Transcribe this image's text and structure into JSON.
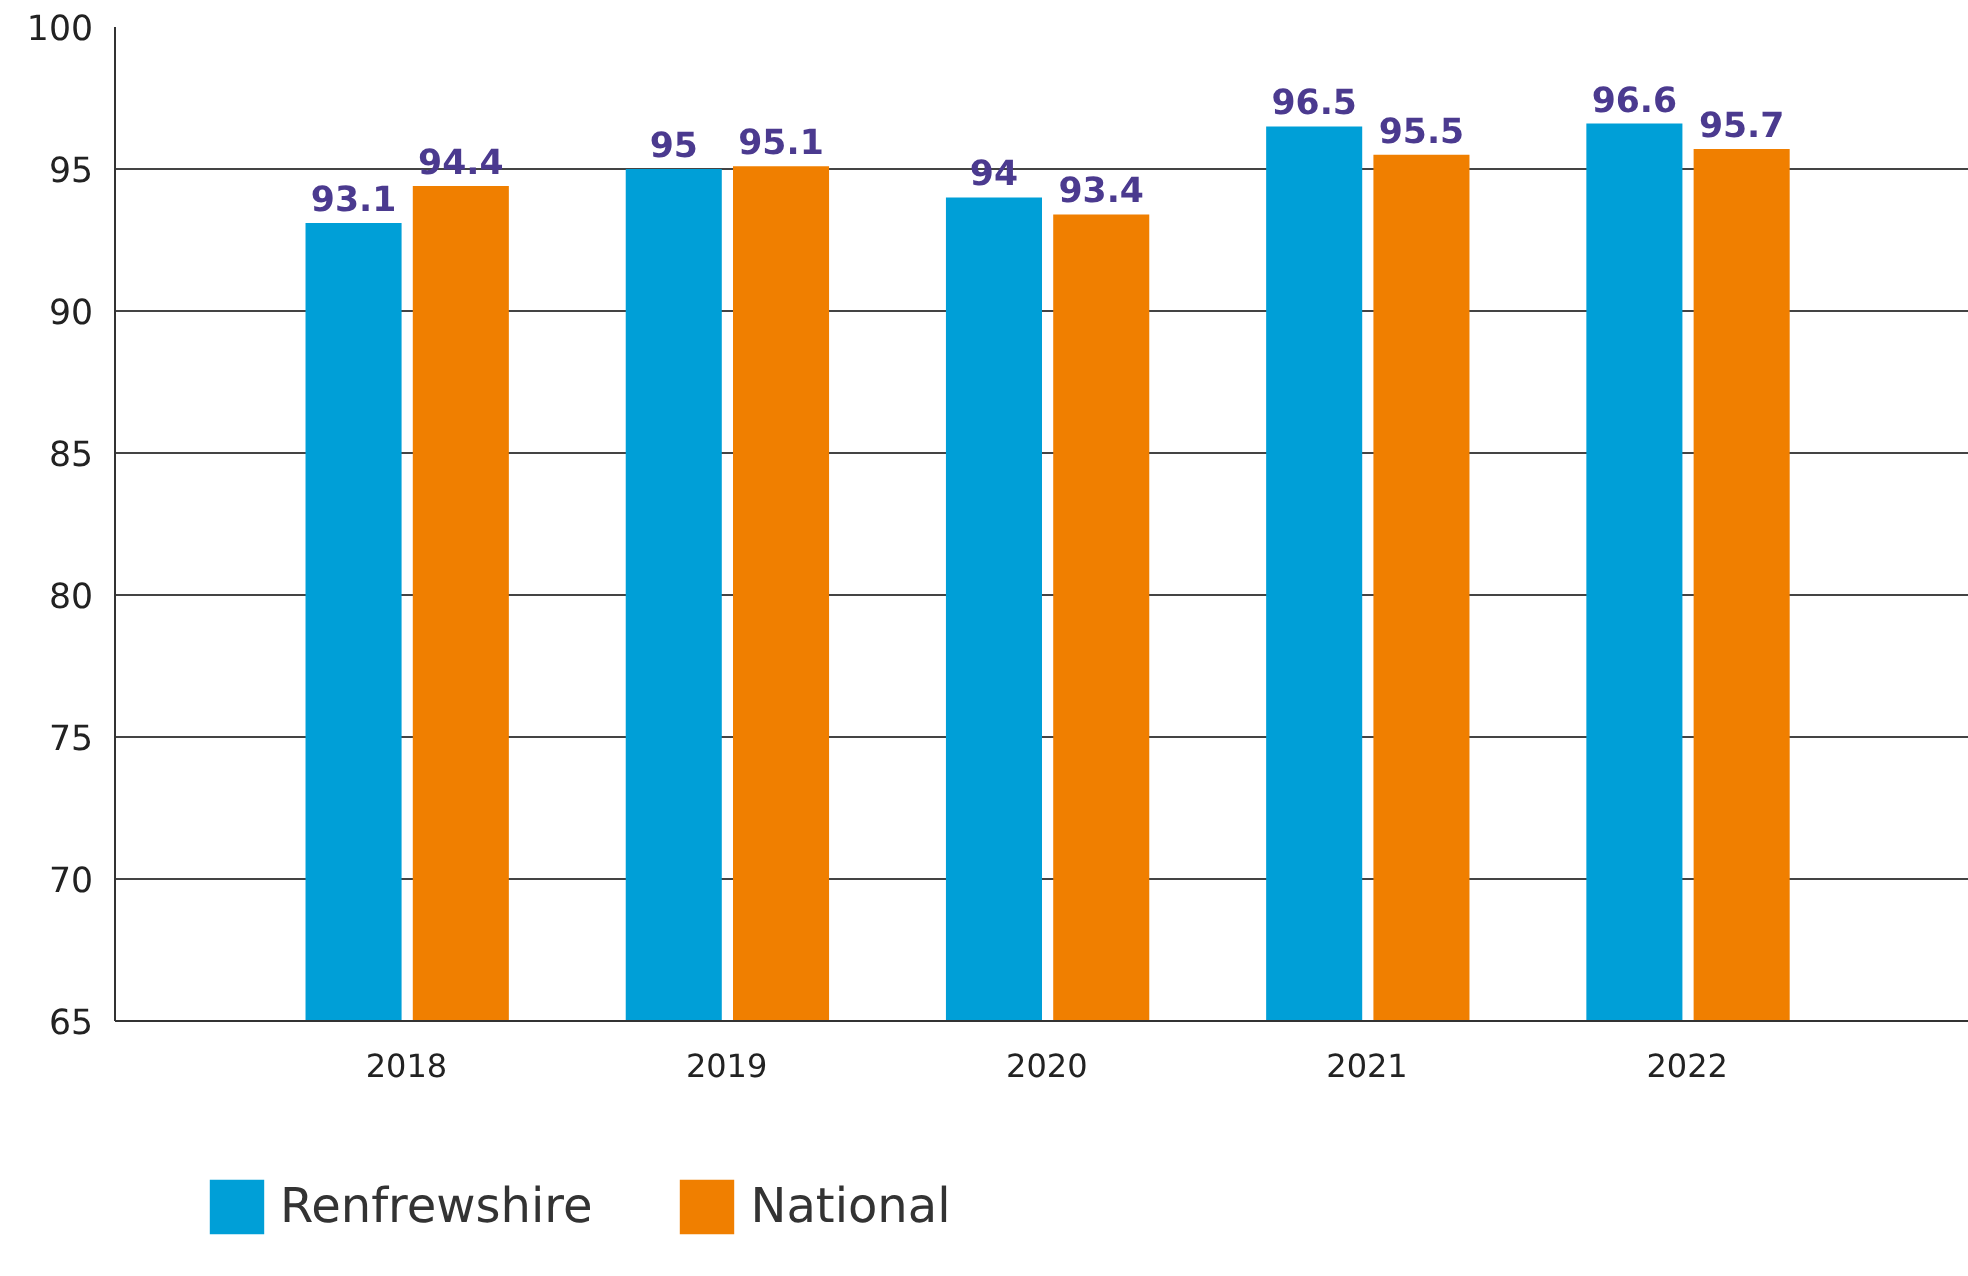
{
  "chart_data": {
    "type": "bar",
    "categories": [
      "2018",
      "2019",
      "2020",
      "2021",
      "2022"
    ],
    "series": [
      {
        "name": "Renfrewshire",
        "color": "#009fd7",
        "values": [
          93.1,
          95,
          94,
          96.5,
          96.6
        ]
      },
      {
        "name": "National",
        "color": "#f07f00",
        "values": [
          94.4,
          95.1,
          93.4,
          95.5,
          95.7
        ]
      }
    ],
    "ylim": [
      65,
      100
    ],
    "yticks": [
      65,
      70,
      75,
      80,
      85,
      90,
      95,
      100
    ],
    "grid": "y",
    "legend": "bottom left",
    "data_labels": true
  }
}
